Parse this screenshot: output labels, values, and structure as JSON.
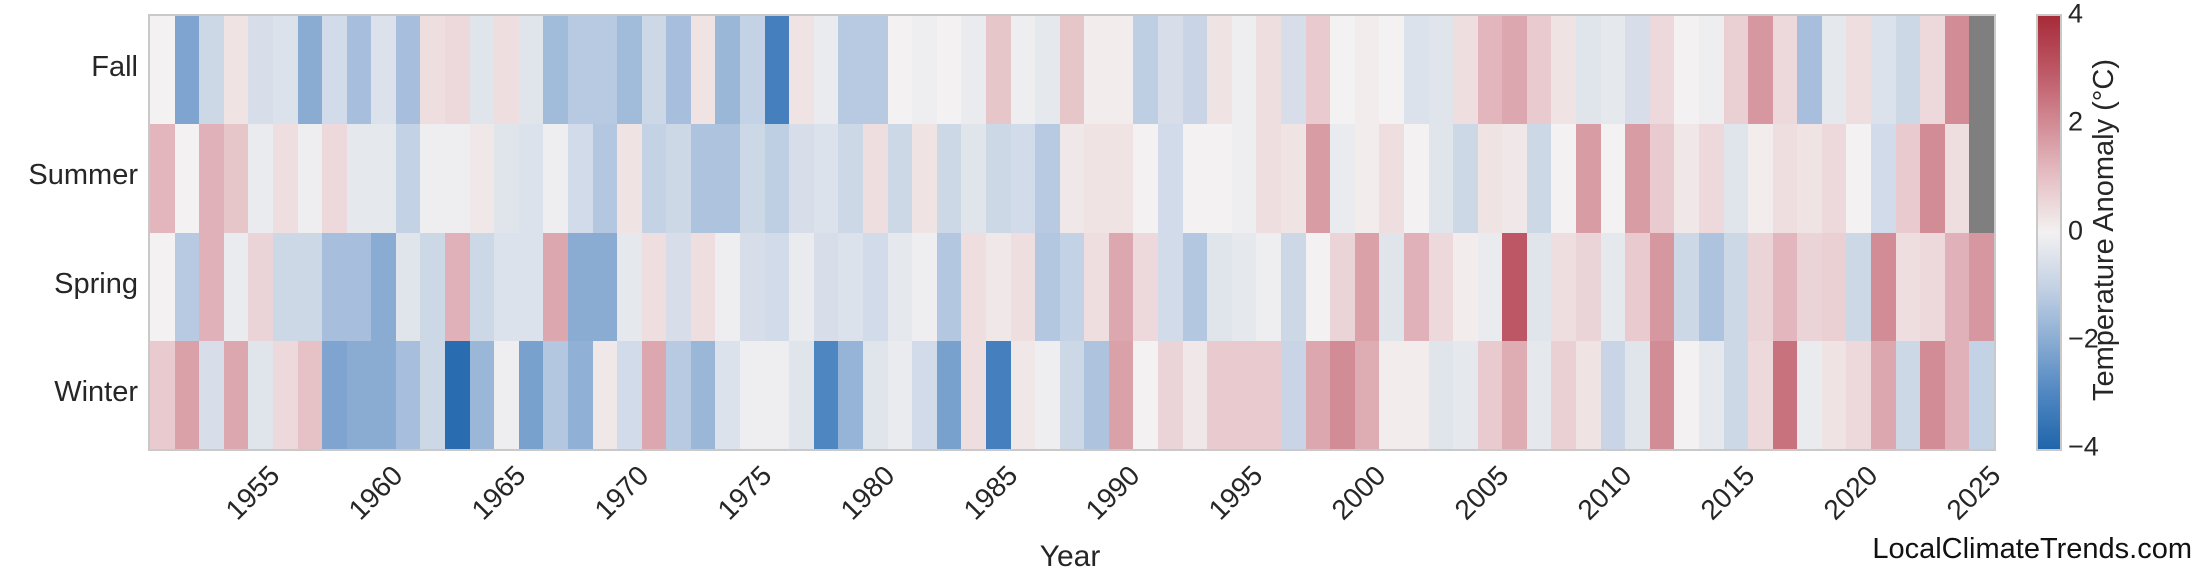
{
  "chart_data": {
    "type": "heatmap",
    "title": "",
    "xlabel": "Year",
    "colorbar_label": "Temperature Anomaly (°C)",
    "rows": [
      "Fall",
      "Summer",
      "Spring",
      "Winter"
    ],
    "x_range": [
      1950,
      2025
    ],
    "years_start": 1950,
    "xticks": [
      "1955",
      "1960",
      "1965",
      "1970",
      "1975",
      "1980",
      "1985",
      "1990",
      "1995",
      "2000",
      "2005",
      "2010",
      "2015",
      "2020",
      "2025"
    ],
    "colorbar_ticks": [
      {
        "value": 4,
        "label": "4"
      },
      {
        "value": 2,
        "label": "2"
      },
      {
        "value": 0,
        "label": "0"
      },
      {
        "value": -2,
        "label": "−2"
      },
      {
        "value": -4,
        "label": "−4"
      }
    ],
    "vmin": -4,
    "vmax": 4,
    "missing_color": "#7f7f7f",
    "colorscale": [
      {
        "value": -4,
        "color": "#2065ab"
      },
      {
        "value": -3,
        "color": "#4e86c1"
      },
      {
        "value": -2,
        "color": "#8aacd3"
      },
      {
        "value": -1,
        "color": "#c4d2e5"
      },
      {
        "value": 0,
        "color": "#f3f1f1"
      },
      {
        "value": 1,
        "color": "#e6c1c6"
      },
      {
        "value": 2,
        "color": "#d28c96"
      },
      {
        "value": 3,
        "color": "#bd5765"
      },
      {
        "value": 4,
        "color": "#a72b39"
      }
    ],
    "series": [
      {
        "name": "Fall",
        "values": [
          0.0,
          -2.2,
          -0.8,
          0.3,
          -0.6,
          -0.5,
          -2.0,
          -0.7,
          -1.5,
          -0.5,
          -1.5,
          0.4,
          0.5,
          -0.4,
          0.4,
          -0.4,
          -1.6,
          -1.2,
          -1.2,
          -1.6,
          -0.8,
          -1.5,
          0.3,
          -1.7,
          -1.0,
          -3.2,
          0.3,
          -0.2,
          -1.2,
          -1.2,
          0.0,
          -0.1,
          0.0,
          -0.2,
          0.9,
          -0.1,
          -0.3,
          0.9,
          0.1,
          0.1,
          -1.1,
          -0.6,
          -0.9,
          0.3,
          -0.1,
          0.4,
          -0.6,
          0.8,
          0.0,
          0.1,
          0.0,
          -0.5,
          -0.4,
          0.4,
          1.2,
          1.5,
          0.8,
          0.3,
          -0.4,
          -0.3,
          -0.6,
          0.5,
          0.0,
          -0.1,
          0.7,
          1.8,
          0.5,
          -1.5,
          -0.3,
          0.4,
          -0.5,
          -0.8,
          0.5,
          2.0,
          null
        ]
      },
      {
        "name": "Summer",
        "values": [
          1.2,
          0.0,
          1.3,
          0.9,
          -0.2,
          0.4,
          -0.1,
          0.5,
          -0.3,
          -0.3,
          -1.0,
          -0.1,
          -0.1,
          0.2,
          -0.4,
          -0.5,
          -0.1,
          -0.7,
          -1.3,
          0.3,
          -1.0,
          -0.8,
          -1.4,
          -1.4,
          -0.8,
          -1.1,
          -0.6,
          -0.5,
          -0.8,
          0.4,
          -0.8,
          0.3,
          -0.8,
          -0.4,
          -0.8,
          -0.7,
          -1.2,
          0.2,
          0.3,
          0.3,
          0.0,
          -0.7,
          0.0,
          0.0,
          -0.1,
          0.4,
          0.3,
          1.7,
          -0.2,
          0.1,
          0.4,
          0.0,
          -0.4,
          -0.8,
          0.3,
          0.2,
          -0.8,
          0.0,
          1.7,
          0.0,
          1.7,
          0.8,
          0.2,
          0.5,
          -0.4,
          0.1,
          0.4,
          0.3,
          0.5,
          0.0,
          -0.7,
          0.8,
          2.0,
          0.4,
          null
        ]
      },
      {
        "name": "Spring",
        "values": [
          0.0,
          -1.2,
          1.3,
          -0.2,
          0.6,
          -0.8,
          -0.8,
          -1.5,
          -1.5,
          -2.0,
          -0.4,
          -0.8,
          1.3,
          -0.8,
          -0.5,
          -0.5,
          1.5,
          -2.0,
          -2.0,
          -0.3,
          0.4,
          -0.6,
          0.4,
          -0.1,
          -0.6,
          -0.7,
          -0.2,
          -0.6,
          -0.5,
          -0.7,
          -0.3,
          -0.1,
          -1.3,
          0.4,
          0.2,
          0.4,
          -1.3,
          -1.0,
          0.4,
          1.5,
          0.5,
          -0.7,
          -1.3,
          -0.4,
          -0.3,
          -0.1,
          -0.8,
          0.0,
          0.6,
          1.6,
          -0.4,
          1.3,
          0.5,
          0.1,
          -0.2,
          3.0,
          -0.4,
          0.4,
          0.6,
          -0.3,
          0.8,
          1.8,
          -0.8,
          -1.4,
          -0.8,
          0.6,
          1.2,
          0.6,
          0.7,
          -0.8,
          2.0,
          0.4,
          0.5,
          1.3,
          1.8
        ]
      },
      {
        "name": "Winter",
        "values": [
          0.8,
          1.6,
          -0.6,
          1.5,
          -0.4,
          0.5,
          1.0,
          -2.2,
          -2.0,
          -2.0,
          -1.5,
          -0.8,
          -3.8,
          -1.7,
          -0.1,
          -2.3,
          -1.3,
          -1.9,
          0.2,
          -0.7,
          1.5,
          -1.2,
          -1.7,
          -0.5,
          -0.1,
          -0.1,
          -0.4,
          -3.0,
          -1.8,
          -0.4,
          -0.2,
          -0.7,
          -2.3,
          0.4,
          -3.2,
          0.2,
          -0.1,
          -0.8,
          -1.4,
          1.6,
          0.0,
          0.6,
          0.2,
          0.8,
          0.8,
          0.8,
          -0.9,
          1.5,
          2.0,
          1.4,
          0.1,
          0.1,
          -0.4,
          -0.3,
          0.8,
          1.4,
          -0.3,
          0.7,
          0.3,
          -0.9,
          -0.4,
          2.0,
          0.0,
          -0.3,
          -0.8,
          0.5,
          2.5,
          -0.2,
          0.3,
          0.5,
          1.5,
          -0.8,
          2.0,
          1.3,
          -1.0
        ]
      }
    ]
  },
  "footer": {
    "watermark": "LocalClimateTrends.com"
  },
  "colors": {
    "missing": "#7f7f7f",
    "frame": "#c9c9c9",
    "text": "#262626"
  }
}
